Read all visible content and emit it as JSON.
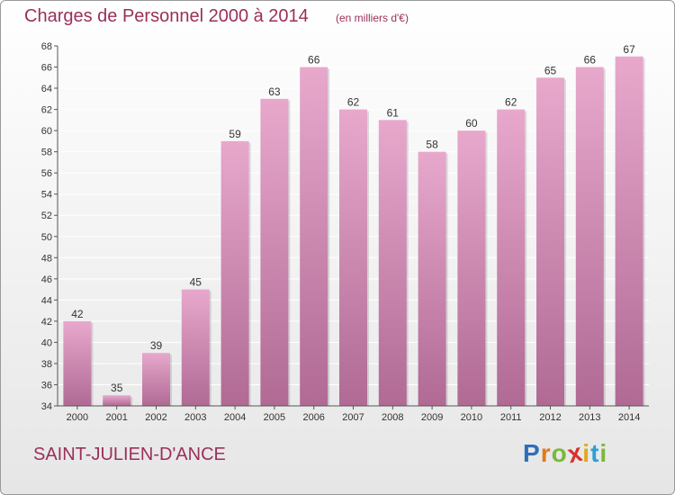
{
  "chart_data": {
    "type": "bar",
    "title": "Charges de Personnel 2000 à 2014",
    "subtitle": "(en milliers d'€)",
    "categories": [
      "2000",
      "2001",
      "2002",
      "2003",
      "2004",
      "2005",
      "2006",
      "2007",
      "2008",
      "2009",
      "2010",
      "2011",
      "2012",
      "2013",
      "2014"
    ],
    "values": [
      42,
      35,
      39,
      45,
      59,
      63,
      66,
      62,
      61,
      58,
      60,
      62,
      65,
      66,
      67
    ],
    "ylim": [
      34,
      68
    ],
    "yticks": [
      34,
      36,
      38,
      40,
      42,
      44,
      46,
      48,
      50,
      52,
      54,
      56,
      58,
      60,
      62,
      64,
      66,
      68
    ],
    "grid": true,
    "bar_color_top": "#e8a8cc",
    "bar_color_bottom": "#b06a94"
  },
  "footer": {
    "town": "SAINT-JULIEN-D'ANCE",
    "brand_letters": [
      "P",
      "r",
      "o",
      "x",
      "i",
      "t",
      "i"
    ],
    "brand_colors": [
      "#2e6fb8",
      "#e07a1a",
      "#7bb83a",
      "#d8312b",
      "#e0a81a",
      "#2e9fd1",
      "#7bb83a"
    ]
  },
  "colors": {
    "title": "#9b2f5a",
    "axis_text": "#333333",
    "grid": "#ffffff"
  }
}
